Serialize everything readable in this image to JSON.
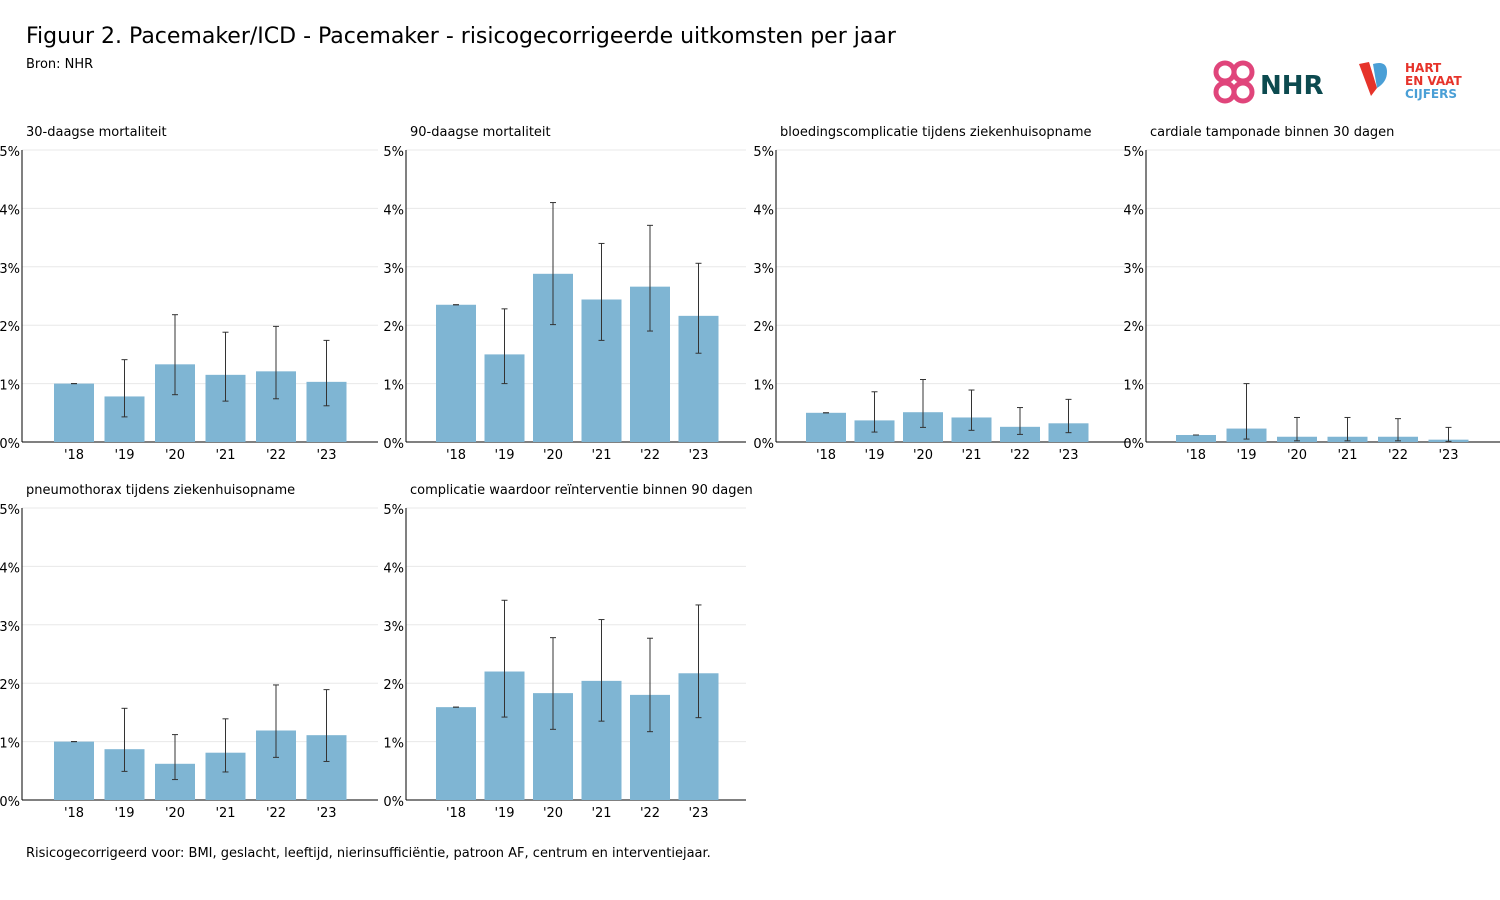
{
  "header": {
    "title": "Figuur 2. Pacemaker/ICD - Pacemaker - risicogecorrigeerde uitkomsten per jaar",
    "source": "Bron: NHR"
  },
  "logos": {
    "nhr_text": "NHR",
    "hartenvaat_lines": [
      "HART",
      "EN VAAT",
      "CIJFERS"
    ]
  },
  "footnote": "Risicogecorrigeerd voor: BMI, geslacht, leeftijd, nierinsufficiëntie, patroon AF, centrum en interventiejaar.",
  "colors": {
    "bar": "#7fb5d3",
    "errorbar": "#333333",
    "grid": "#e8e8e8",
    "axis": "#000000",
    "nhr_pink": "#e0457b",
    "nhr_text": "#0c4a4f",
    "hv_red": "#e6332a",
    "hv_blue": "#4a9fd6"
  },
  "chart_data": [
    {
      "type": "bar",
      "title": "30-daagse mortaliteit",
      "categories": [
        "'18",
        "'19",
        "'20",
        "'21",
        "'22",
        "'23"
      ],
      "values": [
        1.0,
        0.78,
        1.33,
        1.15,
        1.21,
        1.03
      ],
      "lower": [
        1.0,
        0.43,
        0.81,
        0.7,
        0.74,
        0.62
      ],
      "upper": [
        1.0,
        1.41,
        2.18,
        1.88,
        1.98,
        1.74
      ],
      "ylim": [
        0,
        5
      ],
      "yticks": [
        "0%",
        "1%",
        "2%",
        "3%",
        "4%",
        "5%"
      ],
      "grid": true
    },
    {
      "type": "bar",
      "title": "90-daagse mortaliteit",
      "categories": [
        "'18",
        "'19",
        "'20",
        "'21",
        "'22",
        "'23"
      ],
      "values": [
        2.35,
        1.5,
        2.88,
        2.44,
        2.66,
        2.16
      ],
      "lower": [
        2.35,
        1.0,
        2.01,
        1.74,
        1.9,
        1.52
      ],
      "upper": [
        2.35,
        2.28,
        4.1,
        3.4,
        3.71,
        3.06
      ],
      "ylim": [
        0,
        5
      ],
      "yticks": [
        "0%",
        "1%",
        "2%",
        "3%",
        "4%",
        "5%"
      ],
      "grid": true
    },
    {
      "type": "bar",
      "title": "bloedingscomplicatie tijdens ziekenhuisopname",
      "categories": [
        "'18",
        "'19",
        "'20",
        "'21",
        "'22",
        "'23"
      ],
      "values": [
        0.5,
        0.37,
        0.51,
        0.42,
        0.26,
        0.32
      ],
      "lower": [
        0.5,
        0.17,
        0.25,
        0.2,
        0.13,
        0.16
      ],
      "upper": [
        0.5,
        0.86,
        1.07,
        0.89,
        0.59,
        0.73
      ],
      "ylim": [
        0,
        5
      ],
      "yticks": [
        "0%",
        "1%",
        "2%",
        "3%",
        "4%",
        "5%"
      ],
      "grid": true
    },
    {
      "type": "bar",
      "title": "cardiale tamponade binnen 30 dagen",
      "categories": [
        "'18",
        "'19",
        "'20",
        "'21",
        "'22",
        "'23"
      ],
      "values": [
        0.12,
        0.23,
        0.09,
        0.09,
        0.09,
        0.04
      ],
      "lower": [
        0.12,
        0.05,
        0.02,
        0.02,
        0.02,
        0.01
      ],
      "upper": [
        0.12,
        1.0,
        0.42,
        0.42,
        0.4,
        0.25
      ],
      "ylim": [
        0,
        5
      ],
      "yticks": [
        "0%",
        "1%",
        "2%",
        "3%",
        "4%",
        "5%"
      ],
      "grid": true
    },
    {
      "type": "bar",
      "title": "pneumothorax tijdens ziekenhuisopname",
      "categories": [
        "'18",
        "'19",
        "'20",
        "'21",
        "'22",
        "'23"
      ],
      "values": [
        1.0,
        0.87,
        0.62,
        0.81,
        1.19,
        1.11
      ],
      "lower": [
        1.0,
        0.49,
        0.35,
        0.48,
        0.73,
        0.66
      ],
      "upper": [
        1.0,
        1.57,
        1.12,
        1.39,
        1.97,
        1.89
      ],
      "ylim": [
        0,
        5
      ],
      "yticks": [
        "0%",
        "1%",
        "2%",
        "3%",
        "4%",
        "5%"
      ],
      "grid": true
    },
    {
      "type": "bar",
      "title": "complicatie waardoor reïnterventie binnen 90 dagen",
      "categories": [
        "'18",
        "'19",
        "'20",
        "'21",
        "'22",
        "'23"
      ],
      "values": [
        1.59,
        2.2,
        1.83,
        2.04,
        1.8,
        2.17
      ],
      "lower": [
        1.59,
        1.42,
        1.21,
        1.35,
        1.17,
        1.41
      ],
      "upper": [
        1.59,
        3.42,
        2.78,
        3.09,
        2.77,
        3.34
      ],
      "ylim": [
        0,
        5
      ],
      "yticks": [
        "0%",
        "1%",
        "2%",
        "3%",
        "4%",
        "5%"
      ],
      "grid": true
    }
  ]
}
